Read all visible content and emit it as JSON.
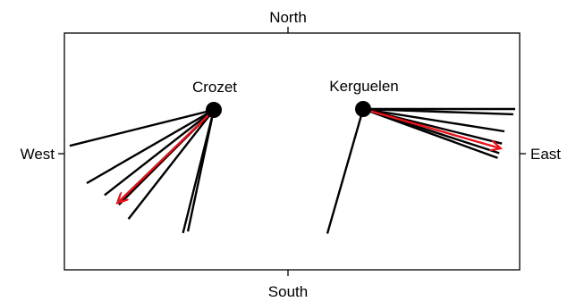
{
  "compass": {
    "north": "North",
    "south": "South",
    "west": "West",
    "east": "East"
  },
  "colors": {
    "individual_track": "#000000",
    "mean_direction": "#e8131b",
    "frame": "#000000"
  },
  "sites": [
    {
      "name": "Crozet",
      "track_bearings_deg": [
        256,
        240,
        232,
        225,
        218,
        194,
        192
      ],
      "mean_bearing_deg": 226
    },
    {
      "name": "Kerguelen",
      "track_bearings_deg": [
        90,
        92,
        99,
        104,
        108,
        110,
        196
      ],
      "mean_bearing_deg": 106
    }
  ]
}
